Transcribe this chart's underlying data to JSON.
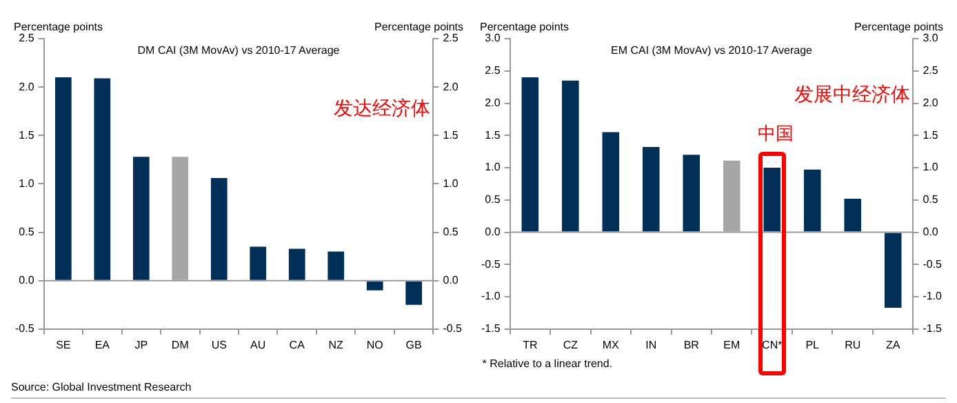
{
  "chart_data": [
    {
      "type": "bar",
      "title": "DM CAI (3M MovAv) vs 2010-17 Average",
      "ylabel": "Percentage points",
      "y2label": "Percentage points",
      "categories": [
        "SE",
        "EA",
        "JP",
        "DM",
        "US",
        "AU",
        "CA",
        "NZ",
        "NO",
        "GB"
      ],
      "values": [
        2.1,
        2.09,
        1.28,
        1.28,
        1.06,
        0.35,
        0.33,
        0.3,
        -0.1,
        -0.25
      ],
      "colors": [
        "#003057",
        "#003057",
        "#003057",
        "#a6a6a6",
        "#003057",
        "#003057",
        "#003057",
        "#003057",
        "#003057",
        "#003057"
      ],
      "ylim": [
        -0.5,
        2.5
      ],
      "yticks": [
        -0.5,
        {
          "value": 0,
          "label": "0.0"
        },
        0.5,
        {
          "value": 1,
          "label": "1.0"
        },
        1.5,
        {
          "value": 2,
          "label": "2.0"
        },
        2.5
      ],
      "y2lim": [
        -0.5,
        2.5
      ],
      "y2ticks": [
        -0.5,
        {
          "value": 0,
          "label": "0.0"
        },
        0.5,
        {
          "value": 1,
          "label": "1.0"
        },
        1.5,
        {
          "value": 2,
          "label": "2.0"
        },
        2.5
      ],
      "ref_lines": [
        {
          "axis": "y",
          "value": 0,
          "color": "#999999"
        }
      ],
      "annotations": [
        "发达经济体",
        "Source: Global Investment Research"
      ]
    },
    {
      "type": "bar",
      "title": "EM CAI (3M MovAv) vs 2010-17 Average",
      "ylabel": "Percentage points",
      "y2label": "Percentage points",
      "categories": [
        "TR",
        "CZ",
        "MX",
        "IN",
        "BR",
        "EM",
        "CN*",
        "PL",
        "RU",
        "ZA"
      ],
      "values": [
        2.4,
        2.35,
        1.55,
        1.32,
        1.2,
        1.11,
        1.0,
        0.97,
        0.52,
        -1.17
      ],
      "colors": [
        "#003057",
        "#003057",
        "#003057",
        "#003057",
        "#003057",
        "#a6a6a6",
        "#003057",
        "#003057",
        "#003057",
        "#003057"
      ],
      "ylim": [
        -1.5,
        3
      ],
      "yticks": [
        -1.5,
        {
          "value": -1,
          "label": "-1.0"
        },
        -0.5,
        {
          "value": 0,
          "label": "0.0"
        },
        0.5,
        {
          "value": 1,
          "label": "1.0"
        },
        1.5,
        {
          "value": 2,
          "label": "2.0"
        },
        2.5,
        {
          "value": 3,
          "label": "3.0"
        }
      ],
      "y2lim": [
        -1.5,
        3
      ],
      "y2ticks": [
        -1.5,
        {
          "value": -1,
          "label": "-1.0"
        },
        -0.5,
        {
          "value": 0,
          "label": "0.0"
        },
        0.5,
        {
          "value": 1,
          "label": "1.0"
        },
        1.5,
        {
          "value": 2,
          "label": "2.0"
        },
        2.5,
        {
          "value": 3,
          "label": "3.0"
        }
      ],
      "ref_lines": [
        {
          "axis": "y",
          "value": 0,
          "color": "#999999"
        }
      ],
      "annotations": [
        "发展中经济体",
        {
          "text": "中国",
          "x": "CN*",
          "y": 1.0
        },
        "* Relative to a linear trend."
      ]
    }
  ]
}
